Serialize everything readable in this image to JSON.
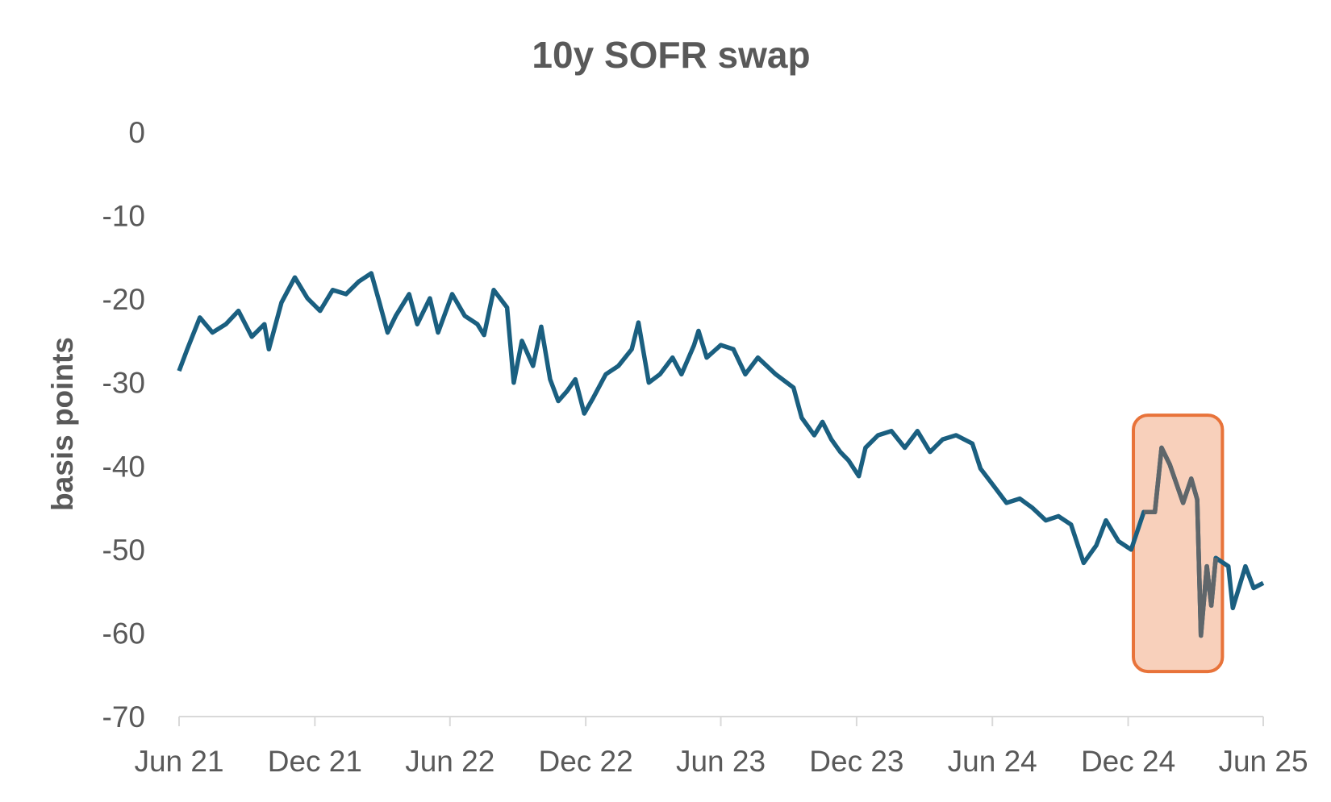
{
  "chart_data": {
    "type": "line",
    "title": "10y SOFR swap",
    "xlabel": "",
    "ylabel": "basis points",
    "ylim": [
      -70,
      0
    ],
    "yticks": [
      "0",
      "-10",
      "-20",
      "-30",
      "-40",
      "-50",
      "-60",
      "-70"
    ],
    "xlim": [
      "2021-06-01",
      "2025-06-01"
    ],
    "xticks": [
      {
        "date": "2021-06-01",
        "label": "Jun 21"
      },
      {
        "date": "2021-12-01",
        "label": "Dec 21"
      },
      {
        "date": "2022-06-01",
        "label": "Jun 22"
      },
      {
        "date": "2022-12-01",
        "label": "Dec 22"
      },
      {
        "date": "2023-06-01",
        "label": "Jun 23"
      },
      {
        "date": "2023-12-01",
        "label": "Dec 23"
      },
      {
        "date": "2024-06-01",
        "label": "Jun 24"
      },
      {
        "date": "2024-12-01",
        "label": "Dec 24"
      },
      {
        "date": "2025-06-01",
        "label": "Jun 25"
      }
    ],
    "grid": false,
    "legend": "none",
    "colors": {
      "line": "#1a5f80",
      "highlight_line": "#5f666a",
      "highlight_fill": "#f8d0bb",
      "highlight_border": "#e8733a"
    },
    "highlight": {
      "start": "2024-12-08",
      "end": "2025-04-07",
      "ymin": -64.6,
      "ymax": -33.9
    },
    "series": [
      {
        "x": [
          "2021-06-01",
          "2021-06-12",
          "2021-06-29",
          "2021-07-16",
          "2021-08-03",
          "2021-08-20",
          "2021-09-07",
          "2021-09-24",
          "2021-09-30",
          "2021-10-17",
          "2021-11-04",
          "2021-11-21",
          "2021-12-08",
          "2021-12-25",
          "2022-01-12",
          "2022-01-29",
          "2022-02-15",
          "2022-02-26",
          "2022-03-09",
          "2022-03-20",
          "2022-04-07",
          "2022-04-18",
          "2022-05-05",
          "2022-05-16",
          "2022-06-04",
          "2022-06-21",
          "2022-07-08",
          "2022-07-17",
          "2022-07-30",
          "2022-08-17",
          "2022-08-26",
          "2022-09-06",
          "2022-09-21",
          "2022-10-02",
          "2022-10-14",
          "2022-10-25",
          "2022-11-06",
          "2022-11-17",
          "2022-11-29",
          "2022-12-10",
          "2022-12-28",
          "2023-01-14",
          "2023-02-01",
          "2023-02-10",
          "2023-02-24",
          "2023-03-11",
          "2023-03-28",
          "2023-04-09",
          "2023-04-26",
          "2023-05-02",
          "2023-05-13",
          "2023-06-01",
          "2023-06-18",
          "2023-07-04",
          "2023-07-21",
          "2023-08-14",
          "2023-09-07",
          "2023-09-18",
          "2023-10-05",
          "2023-10-16",
          "2023-10-28",
          "2023-11-09",
          "2023-11-20",
          "2023-12-04",
          "2023-12-13",
          "2023-12-30",
          "2024-01-17",
          "2024-02-04",
          "2024-02-21",
          "2024-03-09",
          "2024-03-26",
          "2024-04-13",
          "2024-05-05",
          "2024-05-16",
          "2024-06-03",
          "2024-06-20",
          "2024-07-08",
          "2024-07-25",
          "2024-08-12",
          "2024-08-29",
          "2024-09-15",
          "2024-10-02",
          "2024-10-19",
          "2024-11-01",
          "2024-11-18",
          "2024-12-05",
          "2024-12-22",
          "2025-01-06",
          "2025-01-15",
          "2025-01-26",
          "2025-02-13",
          "2025-02-24",
          "2025-03-04",
          "2025-03-09",
          "2025-03-17",
          "2025-03-23",
          "2025-03-29",
          "2025-04-15",
          "2025-04-21",
          "2025-05-08",
          "2025-05-19",
          "2025-06-01"
        ],
        "y": [
          -28.6,
          -26,
          -22.2,
          -24,
          -23,
          -21.4,
          -24.5,
          -23,
          -26,
          -20.4,
          -17.4,
          -19.9,
          -21.4,
          -18.9,
          -19.4,
          -17.9,
          -16.9,
          -20.4,
          -24,
          -22,
          -19.4,
          -23,
          -19.9,
          -24,
          -19.4,
          -22,
          -23,
          -24.3,
          -18.9,
          -21,
          -30,
          -25,
          -28,
          -23.3,
          -29.6,
          -32.2,
          -31,
          -29.6,
          -33.7,
          -32,
          -29,
          -28,
          -26,
          -22.8,
          -30,
          -29,
          -27,
          -29,
          -25.5,
          -23.8,
          -27,
          -25.5,
          -26,
          -29,
          -27,
          -29,
          -30.6,
          -34.2,
          -36.3,
          -34.7,
          -36.8,
          -38.3,
          -39.3,
          -41.2,
          -37.8,
          -36.3,
          -35.8,
          -37.8,
          -35.8,
          -38.3,
          -36.8,
          -36.3,
          -37.3,
          -40.3,
          -42.4,
          -44.4,
          -43.9,
          -45,
          -46.5,
          -46,
          -47,
          -51.6,
          -49.5,
          -46.5,
          -49,
          -50,
          -45.5,
          -45.5,
          -37.8,
          -39.8,
          -44.4,
          -41.5,
          -44,
          -60.3,
          -52,
          -56.7,
          -51,
          -52,
          -57,
          -52,
          -54.6,
          -54
        ]
      }
    ]
  }
}
